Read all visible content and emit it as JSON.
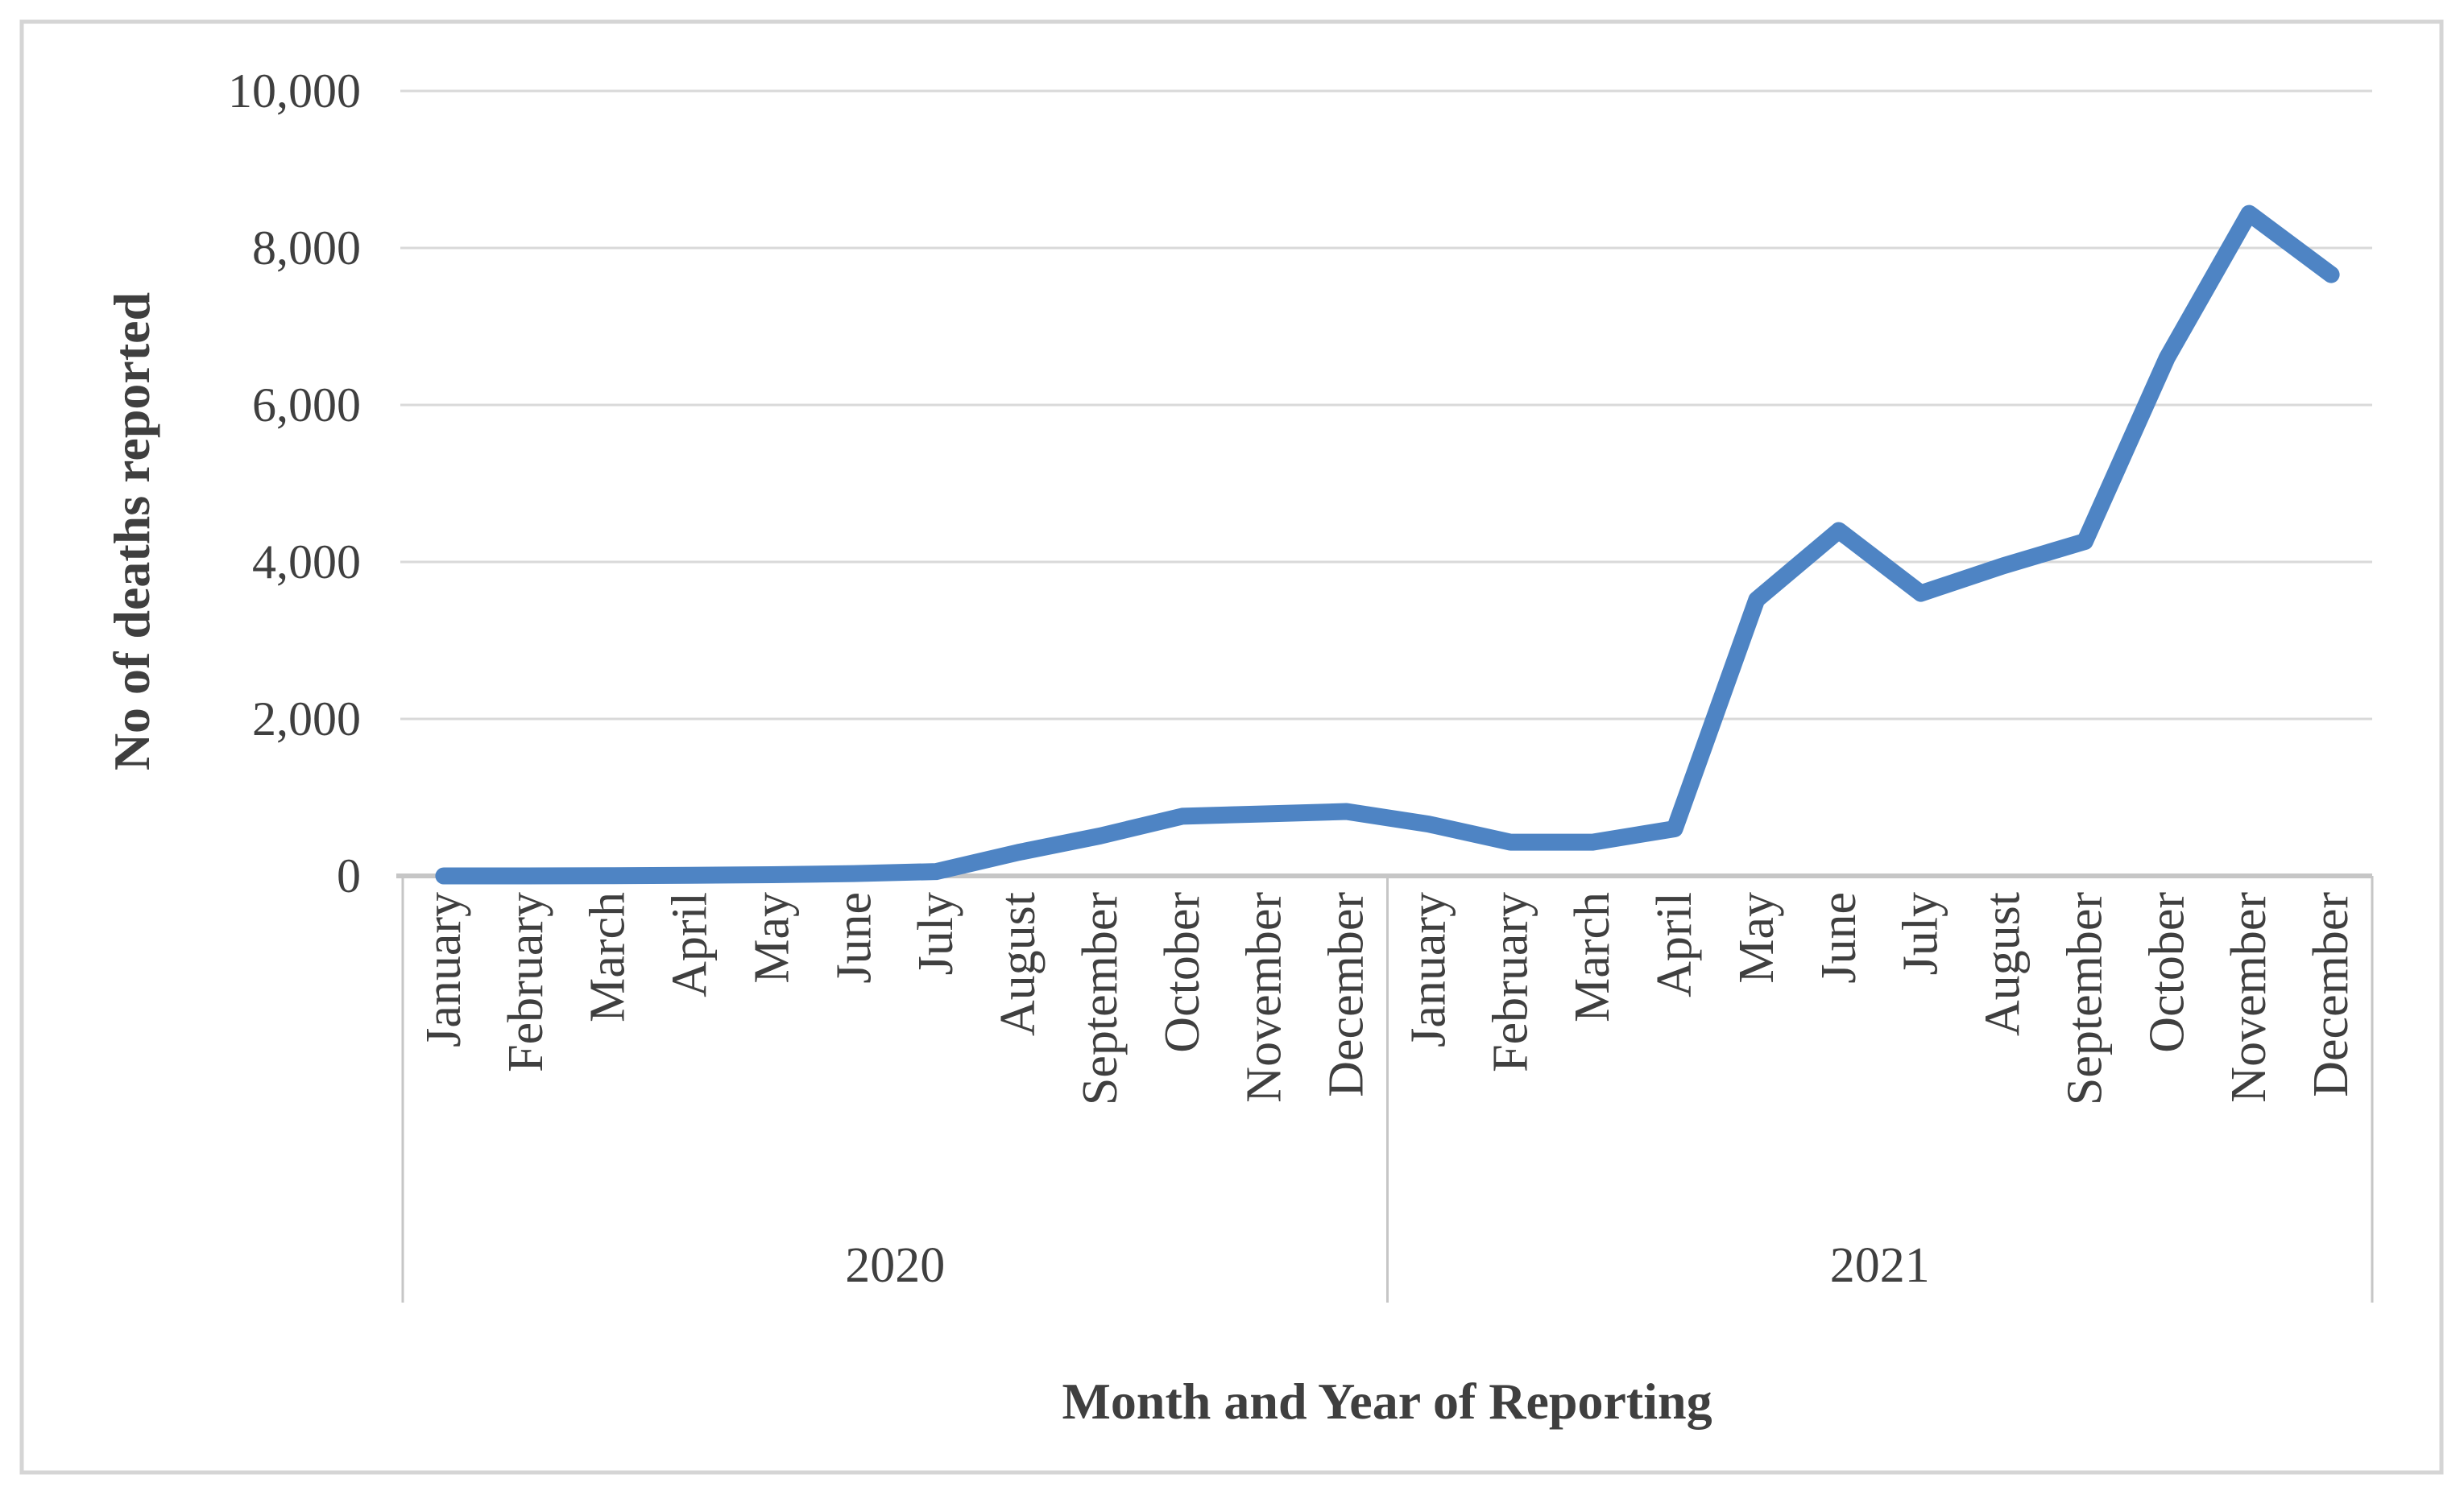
{
  "chart_data": {
    "type": "line",
    "title": "",
    "xlabel": "Month and Year of Reporting",
    "ylabel": "No of deaths reported",
    "x_groups": [
      {
        "label": "2020",
        "categories": [
          "January",
          "February",
          "March",
          "April",
          "May",
          "June",
          "July",
          "August",
          "September",
          "October",
          "November",
          "December"
        ]
      },
      {
        "label": "2021",
        "categories": [
          "January",
          "February",
          "March",
          "April",
          "May",
          "June",
          "July",
          "August",
          "September",
          "October",
          "November",
          "December"
        ]
      }
    ],
    "series": [
      {
        "name": "No of deaths reported",
        "values": [
          0,
          0,
          2,
          8,
          15,
          30,
          55,
          300,
          510,
          760,
          790,
          820,
          660,
          430,
          430,
          600,
          3520,
          4400,
          3600,
          3950,
          4260,
          6600,
          8440,
          7660
        ]
      }
    ],
    "ylim": [
      0,
      10000
    ],
    "yticks": [
      0,
      2000,
      4000,
      6000,
      8000,
      10000
    ],
    "ytick_labels": [
      "0",
      "2,000",
      "4,000",
      "6,000",
      "8,000",
      "10,000"
    ],
    "grid": true,
    "legend": "none",
    "colors": {
      "line": "#4e84c4",
      "gridline": "#d9d9d9",
      "axis": "#c6c6c6",
      "text": "#3f3f3f",
      "border": "#d5d5d5",
      "background": "#ffffff"
    }
  }
}
